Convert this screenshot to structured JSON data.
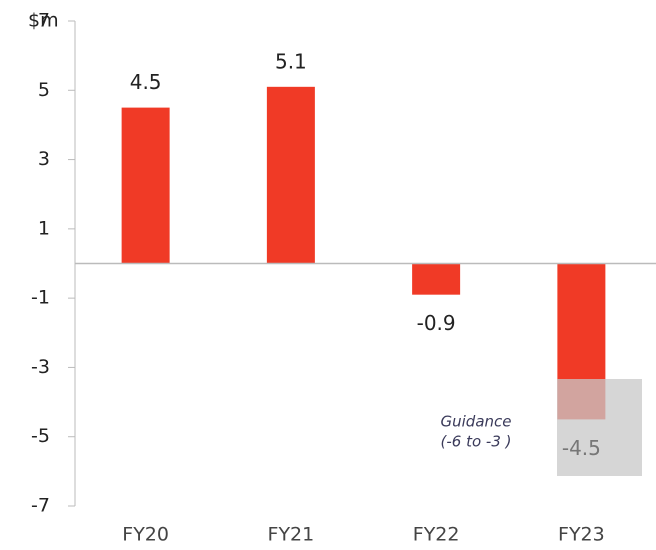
{
  "chart_data": {
    "type": "bar",
    "y_label": "$m",
    "categories": [
      "FY20",
      "FY21",
      "FY22",
      "FY23"
    ],
    "values": [
      4.5,
      5.1,
      -0.9,
      -4.5
    ],
    "color": "#f03a26",
    "ylim": [
      -7,
      7
    ],
    "yticks": [
      -7,
      -5,
      -3,
      -1,
      1,
      3,
      5,
      7
    ],
    "annotation": [
      "Guidance",
      "(-6 to -3 )"
    ]
  }
}
